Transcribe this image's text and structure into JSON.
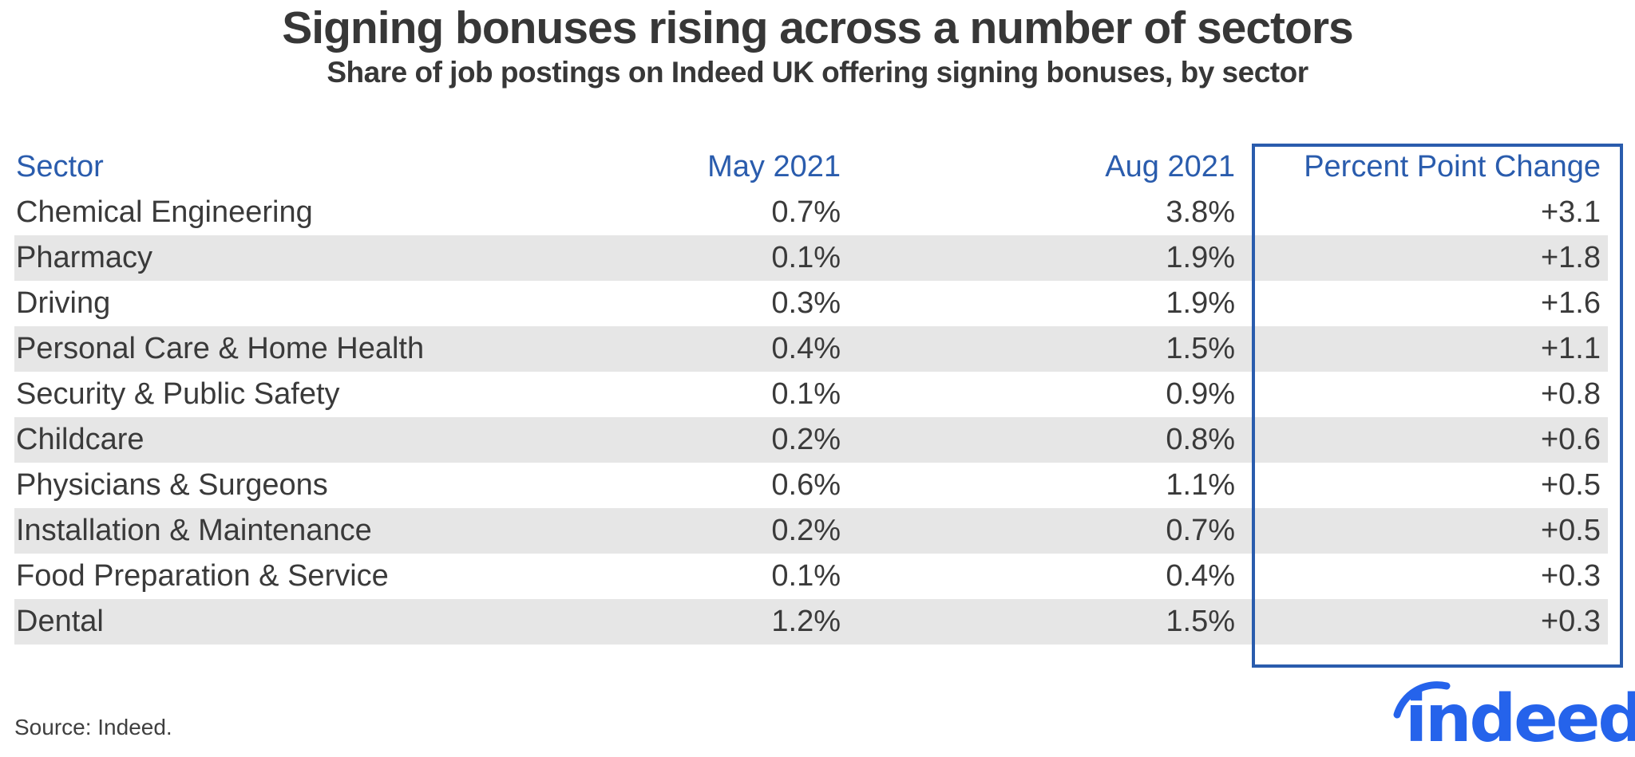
{
  "header": {
    "title": "Signing bonuses rising across a number of sectors",
    "subtitle": "Share of job postings on Indeed UK offering signing bonuses, by sector"
  },
  "chart_data": {
    "type": "table",
    "title": "Signing bonuses rising across a number of sectors",
    "subtitle": "Share of job postings on Indeed UK offering signing bonuses, by sector",
    "columns": [
      "Sector",
      "May 2021",
      "Aug 2021",
      "Percent Point Change"
    ],
    "rows": [
      [
        "Chemical Engineering",
        "0.7%",
        "3.8%",
        "+3.1"
      ],
      [
        "Pharmacy",
        "0.1%",
        "1.9%",
        "+1.8"
      ],
      [
        "Driving",
        "0.3%",
        "1.9%",
        "+1.6"
      ],
      [
        "Personal Care & Home Health",
        "0.4%",
        "1.5%",
        "+1.1"
      ],
      [
        "Security & Public Safety",
        "0.1%",
        "0.9%",
        "+0.8"
      ],
      [
        "Childcare",
        "0.2%",
        "0.8%",
        "+0.6"
      ],
      [
        "Physicians & Surgeons",
        "0.6%",
        "1.1%",
        "+0.5"
      ],
      [
        "Installation & Maintenance",
        "0.2%",
        "0.7%",
        "+0.5"
      ],
      [
        "Food Preparation & Service",
        "0.1%",
        "0.4%",
        "+0.3"
      ],
      [
        "Dental",
        "1.2%",
        "1.5%",
        "+0.3"
      ]
    ],
    "numeric_values": {
      "may_2021": [
        0.7,
        0.1,
        0.3,
        0.4,
        0.1,
        0.2,
        0.6,
        0.2,
        0.1,
        1.2
      ],
      "aug_2021": [
        3.8,
        1.9,
        1.9,
        1.5,
        0.9,
        0.8,
        1.1,
        0.7,
        0.4,
        1.5
      ],
      "pp_change": [
        3.1,
        1.8,
        1.6,
        1.1,
        0.8,
        0.6,
        0.5,
        0.5,
        0.3,
        0.3
      ]
    },
    "layout_hints": {
      "striped_rows": "every second data row shaded gray",
      "highlighted_column": "Percent Point Change",
      "highlight_style": "blue rectangle outline around entire column including header"
    }
  },
  "footer": {
    "source": "Source: Indeed.",
    "logo_text": "indeed"
  },
  "colors": {
    "accent_blue": "#2a5cad",
    "logo_blue": "#2563eb",
    "stripe_gray": "#e6e6e6",
    "title_text": "#373737",
    "body_text": "#3a3a3a",
    "background": "#ffffff"
  }
}
